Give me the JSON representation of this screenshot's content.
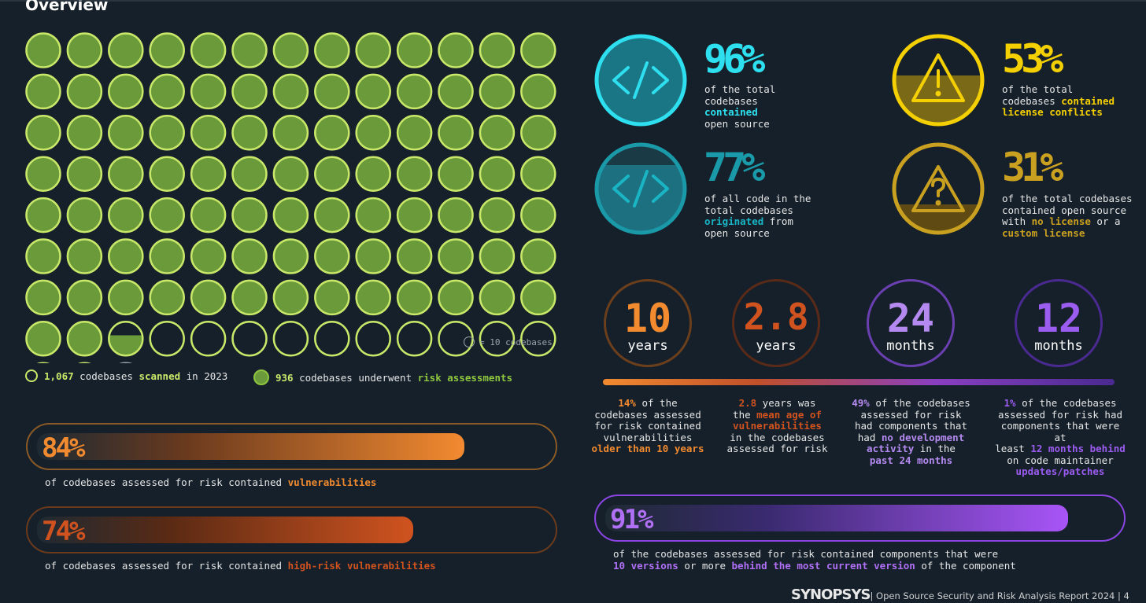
{
  "page": {
    "title": "Overview"
  },
  "chart_data": [
    {
      "type": "pictograph",
      "unit_label": "= 10 codebases",
      "units_per_icon": 10,
      "total_scanned": 1067,
      "risk_assessed": 936,
      "legend": [
        {
          "value": "1,067",
          "text_before": " codebases ",
          "highlight": "scanned",
          "text_after": " in 2023"
        },
        {
          "value": "936",
          "text_before": " codebases underwent ",
          "highlight": "risk assessments",
          "text_after": ""
        }
      ]
    },
    {
      "type": "bar",
      "categories": [
        "vulnerabilities",
        "high-risk vulnerabilities"
      ],
      "values": [
        84,
        74
      ],
      "ylim": [
        0,
        100
      ]
    }
  ],
  "bars": [
    {
      "pct": "84%",
      "value": 84,
      "caption": "of codebases assessed for risk contained ",
      "highlight": "vulnerabilities"
    },
    {
      "pct": "74%",
      "value": 74,
      "caption": "of codebases assessed for risk contained ",
      "highlight": "high-risk vulnerabilities"
    },
    {
      "pct": "91%",
      "value": 91,
      "caption_line1": "of the codebases assessed for risk contained components that were",
      "hl1": "10 versions",
      "mid": " or more ",
      "hl2": "behind the most current version",
      "tail": " of the component"
    }
  ],
  "stats": [
    {
      "pct": "96%",
      "value": 96,
      "icon": "code-icon",
      "lines": [
        "of the total",
        "codebases",
        "contained",
        "open source"
      ]
    },
    {
      "pct": "77%",
      "value": 77,
      "icon": "code-icon",
      "lines": [
        "of all code in the",
        "total codebases",
        "originated from",
        "open source"
      ]
    },
    {
      "pct": "53%",
      "value": 53,
      "icon": "warning-exclamation-icon",
      "lines": [
        "of the total",
        "codebases contained",
        "license conflicts"
      ]
    },
    {
      "pct": "31%",
      "value": 31,
      "icon": "warning-question-icon",
      "lines": [
        "of the total codebases",
        "contained open source",
        "with no license or a",
        "custom license"
      ]
    }
  ],
  "stat_text": {
    "s1_hl": "contained",
    "s2_hl": "originated",
    "s2_rest": " from",
    "s3_a": "codebases ",
    "s3_hl": "contained",
    "s3_hl2": "license conflicts",
    "s4_a": "with ",
    "s4_hl": "no license",
    "s4_b": " or a",
    "s4_hl2": "custom license"
  },
  "rings": [
    {
      "num": "10",
      "unit": "years",
      "color": "#f28a30"
    },
    {
      "num": "2.8",
      "unit": "years",
      "color": "#d0531f"
    },
    {
      "num": "24",
      "unit": "months",
      "color": "#b58af0"
    },
    {
      "num": "12",
      "unit": "months",
      "color": "#9b5cf0"
    }
  ],
  "ring_text": {
    "c1": {
      "hl_top": "14%",
      "t1": " of the",
      "t2": "codebases assessed",
      "t3": "for risk contained",
      "t4": "vulnerabilities",
      "hl_bottom": "older than 10 years"
    },
    "c2": {
      "hl_top": "2.8",
      "t1": " years was",
      "t2a": "the ",
      "hl_mid": "mean age of",
      "hl_mid2": "vulnerabilities",
      "t3": "in the codebases",
      "t4": "assessed for risk"
    },
    "c3": {
      "hl_top": "49%",
      "t1": " of the codebases",
      "t2": "assessed for risk",
      "t3": "had components that",
      "t4a": "had ",
      "hl_mid": "no development",
      "hl_mid2": "activity",
      "t5": " in the",
      "hl_bottom": "past 24 months"
    },
    "c4": {
      "hl_top": "1%",
      "t1": " of the codebases",
      "t2": "assessed for risk had",
      "t3": "components that were at",
      "t4a": "least ",
      "hl_mid": "12 months behind",
      "t5": "on code maintainer",
      "hl_bottom": "updates/patches"
    }
  },
  "footer": {
    "brand": "SYNOPSYS",
    "text": " | Open Source Security and Risk Analysis Report 2024 | 4"
  }
}
